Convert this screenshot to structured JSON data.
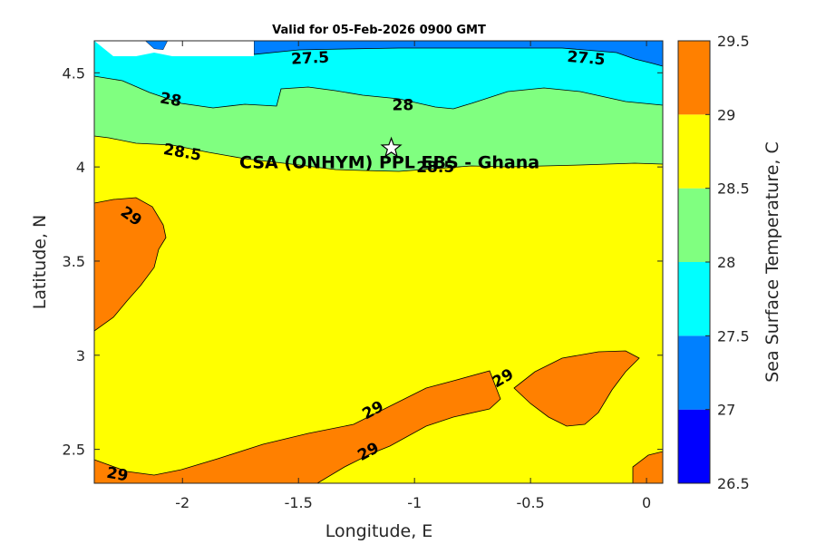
{
  "chart_data": {
    "type": "contour",
    "title": "Valid for 05-Feb-2026 0900 GMT",
    "xlabel": "Longitude, E",
    "ylabel": "Latitude, N",
    "xlim": [
      -2.38,
      0.07
    ],
    "ylim": [
      2.32,
      4.67
    ],
    "xticks": [
      -2,
      -1.5,
      -1,
      -0.5,
      0
    ],
    "xtick_labels": [
      "-2",
      "-1.5",
      "-1",
      "-0.5",
      "0"
    ],
    "yticks": [
      2.5,
      3,
      3.5,
      4,
      4.5
    ],
    "ytick_labels": [
      "2.5",
      "3",
      "3.5",
      "4",
      "4.5"
    ],
    "grid": false,
    "colorbar": {
      "label": "Sea Surface Temperature, C",
      "levels": [
        26.5,
        27,
        27.5,
        28,
        28.5,
        29,
        29.5
      ],
      "tick_labels": [
        "26.5",
        "27",
        "27.5",
        "28",
        "28.5",
        "29",
        "29.5"
      ],
      "colors": [
        "#0000ff",
        "#0080ff",
        "#00ffff",
        "#80ff80",
        "#ffff00",
        "#ff8000"
      ]
    },
    "contour_labels": [
      {
        "text": "27.5",
        "x": -1.45,
        "y": 4.58,
        "angle": -3
      },
      {
        "text": "27.5",
        "x": -0.26,
        "y": 4.58,
        "angle": 5
      },
      {
        "text": "28",
        "x": -2.05,
        "y": 4.36,
        "angle": 10
      },
      {
        "text": "28",
        "x": -1.05,
        "y": 4.33,
        "angle": 0
      },
      {
        "text": "28.5",
        "x": -2.0,
        "y": 4.08,
        "angle": 10
      },
      {
        "text": "28.5",
        "x": -0.91,
        "y": 4.0,
        "angle": 0
      },
      {
        "text": "29",
        "x": -2.22,
        "y": 3.74,
        "angle": 35
      },
      {
        "text": "29",
        "x": -0.62,
        "y": 2.88,
        "angle": -30
      },
      {
        "text": "29",
        "x": -1.18,
        "y": 2.71,
        "angle": -28
      },
      {
        "text": "29",
        "x": -1.2,
        "y": 2.49,
        "angle": -28
      },
      {
        "text": "29",
        "x": -2.28,
        "y": 2.37,
        "angle": 10
      }
    ],
    "site": {
      "label": "CSA (ONHYM) PPL EBS  - Ghana",
      "lon": -1.1,
      "lat": 4.1,
      "marker": "star"
    }
  }
}
